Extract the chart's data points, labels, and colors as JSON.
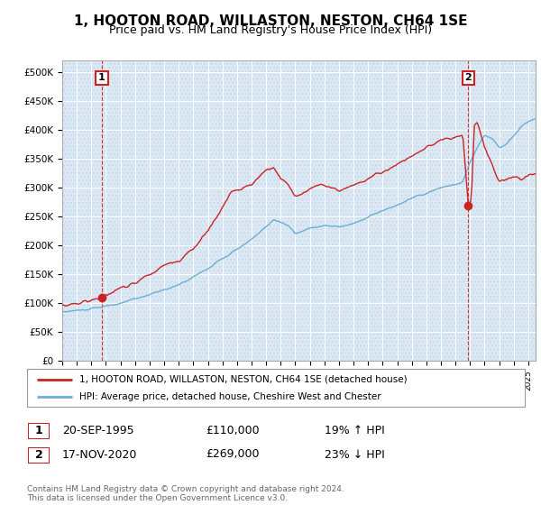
{
  "title": "1, HOOTON ROAD, WILLASTON, NESTON, CH64 1SE",
  "subtitle": "Price paid vs. HM Land Registry's House Price Index (HPI)",
  "title_fontsize": 11,
  "subtitle_fontsize": 9,
  "ylabel_ticks": [
    "£0",
    "£50K",
    "£100K",
    "£150K",
    "£200K",
    "£250K",
    "£300K",
    "£350K",
    "£400K",
    "£450K",
    "£500K"
  ],
  "ytick_vals": [
    0,
    50000,
    100000,
    150000,
    200000,
    250000,
    300000,
    350000,
    400000,
    450000,
    500000
  ],
  "ylim": [
    0,
    520000
  ],
  "xlim_start": 1993.0,
  "xlim_end": 2025.5,
  "hpi_color": "#6baed6",
  "price_color": "#cc2222",
  "marker1_date": 1995.72,
  "marker1_price": 110000,
  "marker2_date": 2020.88,
  "marker2_price": 269000,
  "annotation1": "1",
  "annotation2": "2",
  "legend_line1": "1, HOOTON ROAD, WILLASTON, NESTON, CH64 1SE (detached house)",
  "legend_line2": "HPI: Average price, detached house, Cheshire West and Chester",
  "table_row1": [
    "1",
    "20-SEP-1995",
    "£110,000",
    "19% ↑ HPI"
  ],
  "table_row2": [
    "2",
    "17-NOV-2020",
    "£269,000",
    "23% ↓ HPI"
  ],
  "footer": "Contains HM Land Registry data © Crown copyright and database right 2024.\nThis data is licensed under the Open Government Licence v3.0.",
  "bg_plot": "#dce9f5",
  "bg_hatch": "#c8d8ea",
  "grid_color": "#ffffff",
  "vline_color": "#cc2222",
  "anno_box_edge": "#cc2222"
}
